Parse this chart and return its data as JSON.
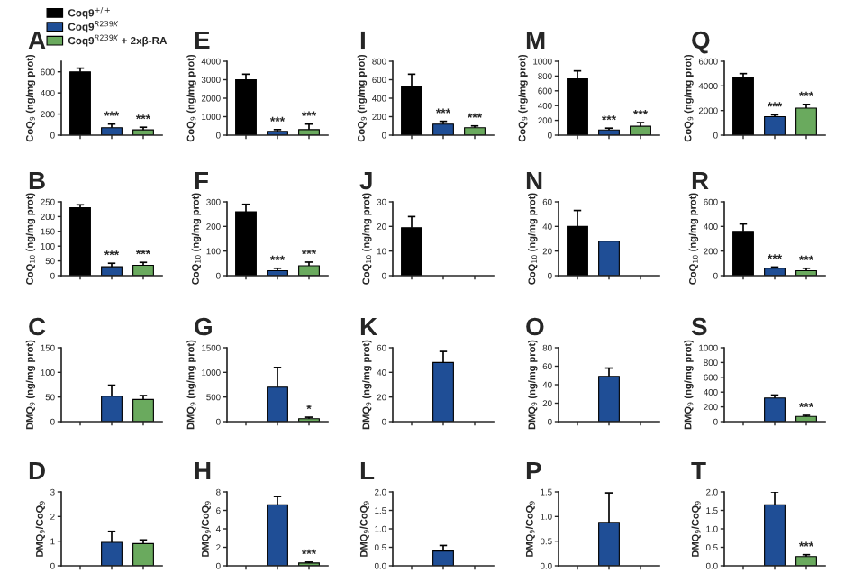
{
  "chart_data": [
    {
      "type": "bar",
      "title": "A",
      "ylabel": "CoQ$_{9}$ (ng/mg prot)",
      "categories": [
        null,
        null,
        null
      ],
      "ylim": [
        0,
        700
      ],
      "yticks": [
        0,
        200,
        400,
        600
      ],
      "legend": "top",
      "series": [
        {
          "name": "Coq9$^{+/+}$",
          "color": "#000000",
          "values": [
            600,
            null,
            null
          ],
          "errors": [
            [
              600,
              635
            ],
            null,
            null
          ]
        },
        {
          "name": "Coq9$^{R239X}$",
          "color": "#1f4e96",
          "values": [
            null,
            70,
            null
          ],
          "errors": [
            null,
            [
              70,
              105
            ],
            null
          ],
          "value_labels": [
            null,
            "***",
            null
          ]
        },
        {
          "name": "Coq9$^{R239X}$ + 2xβ-RA",
          "color": "#6aaa5e",
          "values": [
            null,
            null,
            50
          ],
          "errors": [
            null,
            null,
            [
              50,
              75
            ]
          ],
          "value_labels": [
            null,
            null,
            "***"
          ]
        }
      ]
    },
    {
      "type": "bar",
      "title": "E",
      "ylabel": "CoQ$_{9}$ (ng/mg prot)",
      "categories": [
        null,
        null,
        null
      ],
      "ylim": [
        0,
        4000
      ],
      "yticks": [
        0,
        1000,
        2000,
        3000,
        4000
      ],
      "values": [
        3000,
        200,
        300
      ],
      "colors": [
        "#000000",
        "#1f4e96",
        "#6aaa5e"
      ],
      "errors": [
        [
          3000,
          3300
        ],
        [
          200,
          300
        ],
        [
          300,
          600
        ]
      ],
      "value_labels": [
        null,
        "***",
        "***"
      ]
    },
    {
      "type": "bar",
      "title": "I",
      "ylabel": "CoQ$_{9}$ (ng/mg prot)",
      "categories": [
        null,
        null,
        null
      ],
      "ylim": [
        0,
        800
      ],
      "yticks": [
        0,
        200,
        400,
        600,
        800
      ],
      "values": [
        530,
        120,
        80
      ],
      "colors": [
        "#000000",
        "#1f4e96",
        "#6aaa5e"
      ],
      "errors": [
        [
          530,
          660
        ],
        [
          120,
          150
        ],
        [
          80,
          100
        ]
      ],
      "value_labels": [
        null,
        "***",
        "***"
      ]
    },
    {
      "type": "bar",
      "title": "M",
      "ylabel": "CoQ$_{9}$ (ng/mg prot)",
      "categories": [
        null,
        null,
        null
      ],
      "ylim": [
        0,
        1000
      ],
      "yticks": [
        0,
        200,
        400,
        600,
        800,
        1000
      ],
      "values": [
        760,
        70,
        120
      ],
      "colors": [
        "#000000",
        "#1f4e96",
        "#6aaa5e"
      ],
      "errors": [
        [
          760,
          870
        ],
        [
          70,
          95
        ],
        [
          120,
          170
        ]
      ],
      "value_labels": [
        null,
        "***",
        "***"
      ]
    },
    {
      "type": "bar",
      "title": "Q",
      "ylabel": "CoQ$_{9}$ (ng/mg prot)",
      "categories": [
        null,
        null,
        null
      ],
      "ylim": [
        0,
        6000
      ],
      "yticks": [
        0,
        2000,
        4000,
        6000
      ],
      "values": [
        4700,
        1500,
        2200
      ],
      "colors": [
        "#000000",
        "#1f4e96",
        "#6aaa5e"
      ],
      "errors": [
        [
          4700,
          5000
        ],
        [
          1500,
          1650
        ],
        [
          2200,
          2500
        ]
      ],
      "value_labels": [
        null,
        "***",
        "***"
      ]
    },
    {
      "type": "bar",
      "title": "B",
      "ylabel": "CoQ$_{10}$ (ng/mg prot)",
      "categories": [
        null,
        null,
        null
      ],
      "ylim": [
        0,
        250
      ],
      "yticks": [
        0,
        50,
        100,
        150,
        200,
        250
      ],
      "values": [
        230,
        30,
        35
      ],
      "colors": [
        "#000000",
        "#1f4e96",
        "#6aaa5e"
      ],
      "errors": [
        [
          230,
          240
        ],
        [
          30,
          42
        ],
        [
          35,
          45
        ]
      ],
      "value_labels": [
        null,
        "***",
        "***"
      ]
    },
    {
      "type": "bar",
      "title": "F",
      "ylabel": "CoQ$_{10}$ (ng/mg prot)",
      "categories": [
        null,
        null,
        null
      ],
      "ylim": [
        0,
        300
      ],
      "yticks": [
        0,
        100,
        200,
        300
      ],
      "values": [
        260,
        20,
        40
      ],
      "colors": [
        "#000000",
        "#1f4e96",
        "#6aaa5e"
      ],
      "errors": [
        [
          260,
          290
        ],
        [
          20,
          30
        ],
        [
          40,
          55
        ]
      ],
      "value_labels": [
        null,
        "***",
        "***"
      ]
    },
    {
      "type": "bar",
      "title": "J",
      "ylabel": "CoQ$_{10}$ (ng/mg prot)",
      "categories": [
        null,
        null,
        null
      ],
      "ylim": [
        0,
        30
      ],
      "yticks": [
        0,
        10,
        20,
        30
      ],
      "values": [
        19.5,
        null,
        null
      ],
      "colors": [
        "#000000",
        "#1f4e96",
        "#6aaa5e"
      ],
      "errors": [
        [
          19.5,
          24
        ],
        null,
        null
      ]
    },
    {
      "type": "bar",
      "title": "N",
      "ylabel": "CoQ$_{10}$ (ng/mg prot)",
      "categories": [
        null,
        null,
        null
      ],
      "ylim": [
        0,
        60
      ],
      "yticks": [
        0,
        20,
        40,
        60
      ],
      "values": [
        40,
        28,
        null
      ],
      "colors": [
        "#000000",
        "#1f4e96",
        "#6aaa5e"
      ],
      "errors": [
        [
          40,
          53
        ],
        null,
        null
      ]
    },
    {
      "type": "bar",
      "title": "R",
      "ylabel": "CoQ$_{10}$ (ng/mg prot)",
      "categories": [
        null,
        null,
        null
      ],
      "ylim": [
        0,
        600
      ],
      "yticks": [
        0,
        200,
        400,
        600
      ],
      "values": [
        360,
        60,
        40
      ],
      "colors": [
        "#000000",
        "#1f4e96",
        "#6aaa5e"
      ],
      "errors": [
        [
          360,
          420
        ],
        [
          60,
          70
        ],
        [
          40,
          60
        ]
      ],
      "value_labels": [
        null,
        "***",
        "***"
      ]
    },
    {
      "type": "bar",
      "title": "C",
      "ylabel": "DMQ$_{9}$ (ng/mg prot)",
      "categories": [
        null,
        null,
        null
      ],
      "ylim": [
        0,
        150
      ],
      "yticks": [
        0,
        50,
        100,
        150
      ],
      "values": [
        null,
        52,
        45
      ],
      "colors": [
        "#000000",
        "#1f4e96",
        "#6aaa5e"
      ],
      "errors": [
        null,
        [
          52,
          74
        ],
        [
          45,
          53
        ]
      ]
    },
    {
      "type": "bar",
      "title": "G",
      "ylabel": "DMQ$_{9}$ (ng/mg prot)",
      "categories": [
        null,
        null,
        null
      ],
      "ylim": [
        0,
        1500
      ],
      "yticks": [
        0,
        500,
        1000,
        1500
      ],
      "values": [
        null,
        700,
        60
      ],
      "colors": [
        "#000000",
        "#1f4e96",
        "#6aaa5e"
      ],
      "errors": [
        null,
        [
          700,
          1100
        ],
        [
          60,
          90
        ]
      ],
      "value_labels": [
        null,
        null,
        "*"
      ]
    },
    {
      "type": "bar",
      "title": "K",
      "ylabel": "DMQ$_{9}$ (ng/mg prot)",
      "categories": [
        null,
        null,
        null
      ],
      "ylim": [
        0,
        60
      ],
      "yticks": [
        0,
        20,
        40,
        60
      ],
      "values": [
        null,
        48,
        null
      ],
      "colors": [
        "#000000",
        "#1f4e96",
        "#6aaa5e"
      ],
      "errors": [
        null,
        [
          48,
          57
        ],
        null
      ]
    },
    {
      "type": "bar",
      "title": "O",
      "ylabel": "DMQ$_{9}$ (ng/mg prot)",
      "categories": [
        null,
        null,
        null
      ],
      "ylim": [
        0,
        80
      ],
      "yticks": [
        0,
        20,
        40,
        60,
        80
      ],
      "values": [
        null,
        49,
        null
      ],
      "colors": [
        "#000000",
        "#1f4e96",
        "#6aaa5e"
      ],
      "errors": [
        null,
        [
          49,
          58
        ],
        null
      ]
    },
    {
      "type": "bar",
      "title": "S",
      "ylabel": "DMQ$_{9}$ (ng/mg prot)",
      "categories": [
        null,
        null,
        null
      ],
      "ylim": [
        0,
        1000
      ],
      "yticks": [
        0,
        200,
        400,
        600,
        800,
        1000
      ],
      "values": [
        null,
        320,
        70
      ],
      "colors": [
        "#000000",
        "#1f4e96",
        "#6aaa5e"
      ],
      "errors": [
        null,
        [
          320,
          360
        ],
        [
          70,
          85
        ]
      ],
      "value_labels": [
        null,
        null,
        "***"
      ]
    },
    {
      "type": "bar",
      "title": "D",
      "ylabel": "DMQ$_{9}$/CoQ$_{9}$",
      "categories": [
        null,
        null,
        null
      ],
      "ylim": [
        0,
        3
      ],
      "yticks": [
        0,
        1,
        2,
        3
      ],
      "values": [
        null,
        0.95,
        0.9
      ],
      "colors": [
        "#000000",
        "#1f4e96",
        "#6aaa5e"
      ],
      "errors": [
        null,
        [
          0.95,
          1.4
        ],
        [
          0.9,
          1.05
        ]
      ]
    },
    {
      "type": "bar",
      "title": "H",
      "ylabel": "DMQ$_{9}$/CoQ$_{9}$",
      "categories": [
        null,
        null,
        null
      ],
      "ylim": [
        0,
        8
      ],
      "yticks": [
        0,
        2,
        4,
        6,
        8
      ],
      "values": [
        null,
        6.6,
        0.3
      ],
      "colors": [
        "#000000",
        "#1f4e96",
        "#6aaa5e"
      ],
      "errors": [
        null,
        [
          6.6,
          7.5
        ],
        [
          0.3,
          0.4
        ]
      ],
      "value_labels": [
        null,
        null,
        "***"
      ]
    },
    {
      "type": "bar",
      "title": "L",
      "ylabel": "DMQ$_{9}$/CoQ$_{9}$",
      "categories": [
        null,
        null,
        null
      ],
      "ylim": [
        0,
        2
      ],
      "yticks": [
        {
          "value": 0,
          "label": "0.0"
        },
        {
          "value": 0.5,
          "label": "0.5"
        },
        {
          "value": 1,
          "label": "1.0"
        },
        {
          "value": 1.5,
          "label": "1.5"
        },
        {
          "value": 2,
          "label": "2.0"
        }
      ],
      "values": [
        null,
        0.4,
        null
      ],
      "colors": [
        "#000000",
        "#1f4e96",
        "#6aaa5e"
      ],
      "errors": [
        null,
        [
          0.4,
          0.55
        ],
        null
      ]
    },
    {
      "type": "bar",
      "title": "P",
      "ylabel": "DMQ$_{9}$/CoQ$_{9}$",
      "categories": [
        null,
        null,
        null
      ],
      "ylim": [
        0,
        1.5
      ],
      "yticks": [
        {
          "value": 0,
          "label": "0.0"
        },
        {
          "value": 0.5,
          "label": "0.5"
        },
        {
          "value": 1,
          "label": "1.0"
        },
        {
          "value": 1.5,
          "label": "1.5"
        }
      ],
      "values": [
        null,
        0.88,
        null
      ],
      "colors": [
        "#000000",
        "#1f4e96",
        "#6aaa5e"
      ],
      "errors": [
        null,
        [
          0.88,
          1.48
        ],
        null
      ]
    },
    {
      "type": "bar",
      "title": "T",
      "ylabel": "DMQ$_{9}$/CoQ$_{9}$",
      "categories": [
        null,
        null,
        null
      ],
      "ylim": [
        0,
        2
      ],
      "yticks": [
        {
          "value": 0,
          "label": "0.0"
        },
        {
          "value": 0.5,
          "label": "0.5"
        },
        {
          "value": 1,
          "label": "1.0"
        },
        {
          "value": 1.5,
          "label": "1.5"
        },
        {
          "value": 2,
          "label": "2.0"
        }
      ],
      "values": [
        null,
        1.65,
        0.25
      ],
      "colors": [
        "#000000",
        "#1f4e96",
        "#6aaa5e"
      ],
      "errors": [
        null,
        [
          1.65,
          2.0
        ],
        [
          0.25,
          0.3
        ]
      ],
      "value_labels": [
        null,
        null,
        "***"
      ]
    }
  ]
}
